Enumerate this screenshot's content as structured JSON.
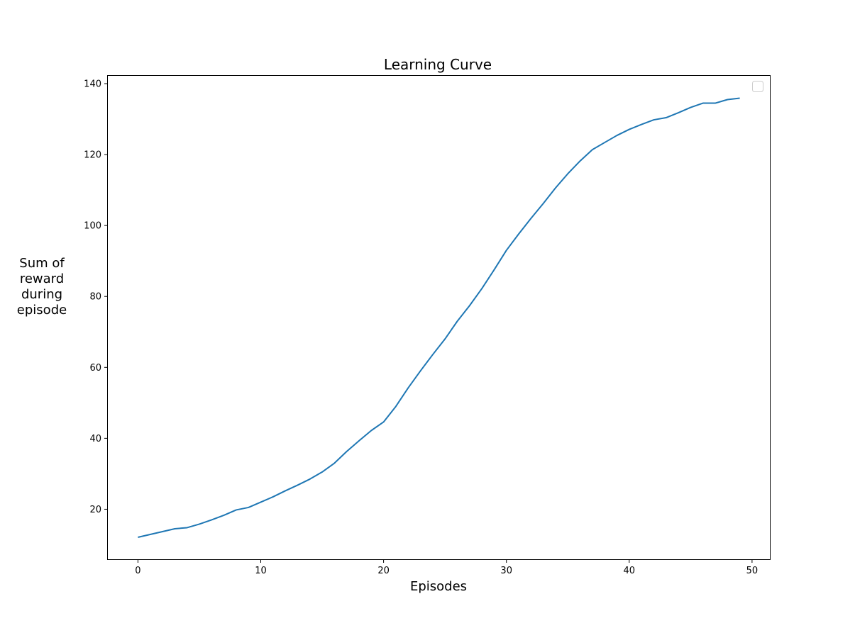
{
  "chart_data": {
    "type": "line",
    "title": "Learning Curve",
    "xlabel": "Episodes",
    "ylabel_lines": [
      "Sum of",
      "reward",
      "during",
      "episode"
    ],
    "xlim": [
      -2.45,
      51.45
    ],
    "ylim": [
      5.9,
      142.2
    ],
    "xticks": [
      0,
      10,
      20,
      30,
      40,
      50
    ],
    "yticks": [
      20,
      40,
      60,
      80,
      100,
      120,
      140
    ],
    "grid": false,
    "legend": {
      "placement": "top-right",
      "entries": []
    },
    "series": [
      {
        "color": "#1f77b4",
        "x": [
          0,
          1,
          2,
          3,
          4,
          5,
          6,
          7,
          8,
          9,
          10,
          11,
          12,
          13,
          14,
          15,
          16,
          17,
          18,
          19,
          20,
          21,
          22,
          23,
          24,
          25,
          26,
          27,
          28,
          29,
          30,
          31,
          32,
          33,
          34,
          35,
          36,
          37,
          38,
          39,
          40,
          41,
          42,
          43,
          44,
          45,
          46,
          47,
          48,
          49
        ],
        "y": [
          12.1,
          12.9,
          13.7,
          14.5,
          14.8,
          15.8,
          17.0,
          18.3,
          19.8,
          20.5,
          22.0,
          23.5,
          25.2,
          26.8,
          28.5,
          30.5,
          33.0,
          36.3,
          39.3,
          42.2,
          44.6,
          49.0,
          54.2,
          59.0,
          63.6,
          68.0,
          73.0,
          77.4,
          82.2,
          87.5,
          93.0,
          97.6,
          102.0,
          106.2,
          110.6,
          114.6,
          118.2,
          121.4,
          123.4,
          125.4,
          127.1,
          128.5,
          129.8,
          130.4,
          131.8,
          133.3,
          134.5,
          134.5,
          135.5,
          135.9
        ]
      }
    ]
  }
}
